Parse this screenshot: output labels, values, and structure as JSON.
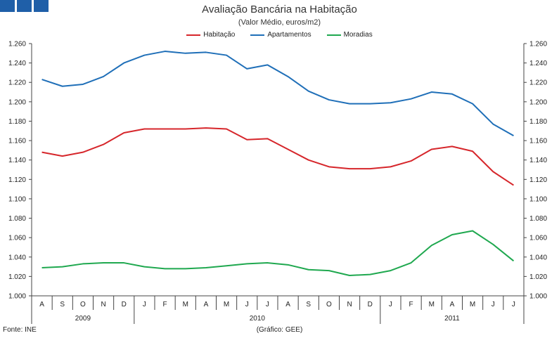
{
  "header": {
    "logo_name": "logo-blue-squares"
  },
  "chart_data": {
    "type": "line",
    "title": "Avaliação Bancária na Habitação",
    "subtitle": "(Valor Médio, euros/m2)",
    "categories": [
      "A",
      "S",
      "O",
      "N",
      "D",
      "J",
      "F",
      "M",
      "A",
      "M",
      "J",
      "J",
      "A",
      "S",
      "O",
      "N",
      "D",
      "J",
      "F",
      "M",
      "A",
      "M",
      "J",
      "J"
    ],
    "years": [
      {
        "label": "2009",
        "start": 0,
        "end": 4
      },
      {
        "label": "2010",
        "start": 5,
        "end": 16
      },
      {
        "label": "2011",
        "start": 17,
        "end": 23
      }
    ],
    "series": [
      {
        "name": "Habitação",
        "color": "#d6262b",
        "values": [
          1.148,
          1.144,
          1.148,
          1.156,
          1.168,
          1.172,
          1.172,
          1.172,
          1.173,
          1.172,
          1.161,
          1.162,
          1.151,
          1.14,
          1.133,
          1.131,
          1.131,
          1.133,
          1.139,
          1.151,
          1.154,
          1.149,
          1.128,
          1.114
        ]
      },
      {
        "name": "Apartamentos",
        "color": "#1f6fb8",
        "values": [
          1.223,
          1.216,
          1.218,
          1.226,
          1.24,
          1.248,
          1.252,
          1.25,
          1.251,
          1.248,
          1.234,
          1.238,
          1.226,
          1.211,
          1.202,
          1.198,
          1.198,
          1.199,
          1.203,
          1.21,
          1.208,
          1.198,
          1.177,
          1.165
        ]
      },
      {
        "name": "Moradias",
        "color": "#1fa84f",
        "values": [
          1.029,
          1.03,
          1.033,
          1.034,
          1.034,
          1.03,
          1.028,
          1.028,
          1.029,
          1.031,
          1.033,
          1.034,
          1.032,
          1.027,
          1.026,
          1.021,
          1.022,
          1.026,
          1.034,
          1.052,
          1.063,
          1.067,
          1.053,
          1.036
        ]
      }
    ],
    "ylim": [
      1.0,
      1.26
    ],
    "yticks": [
      "1.000",
      "1.020",
      "1.040",
      "1.060",
      "1.080",
      "1.100",
      "1.120",
      "1.140",
      "1.160",
      "1.180",
      "1.200",
      "1.220",
      "1.240",
      "1.260"
    ],
    "grid": false,
    "legend_position": "top-center"
  },
  "footer": {
    "source": "Fonte: INE",
    "credit": "(Gráfico: GEE)"
  }
}
